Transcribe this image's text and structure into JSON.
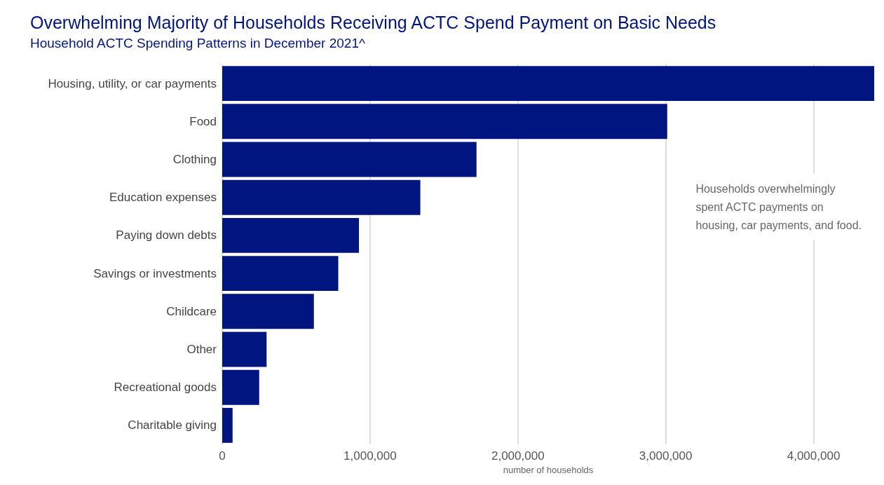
{
  "chart_data": {
    "type": "bar",
    "orientation": "horizontal",
    "title": "Overwhelming Majority of Households Receiving ACTC Spend Payment on Basic Needs",
    "subtitle": "Household ACTC Spending Patterns in December 2021^",
    "xlabel": "number of households",
    "categories": [
      "Housing, utility, or car payments",
      "Food",
      "Clothing",
      "Education expenses",
      "Paying down debts",
      "Savings or investments",
      "Childcare",
      "Other",
      "Recreational goods",
      "Charitable giving"
    ],
    "values": [
      4410000,
      3010000,
      1720000,
      1340000,
      925000,
      785000,
      620000,
      300000,
      250000,
      70000
    ],
    "color": "#00157f",
    "xlim": [
      0,
      4410000
    ],
    "xticks": [
      0,
      {
        "value": 1000000,
        "label": "1,000,000"
      },
      {
        "value": 2000000,
        "label": "2,000,000"
      },
      {
        "value": 3000000,
        "label": "3,000,000"
      },
      {
        "value": 4000000,
        "label": "4,000,000"
      }
    ],
    "grid": "x",
    "annotations": [
      "Households overwhelmingly\nspent ACTC payments on\nhousing, car payments, and food."
    ]
  }
}
